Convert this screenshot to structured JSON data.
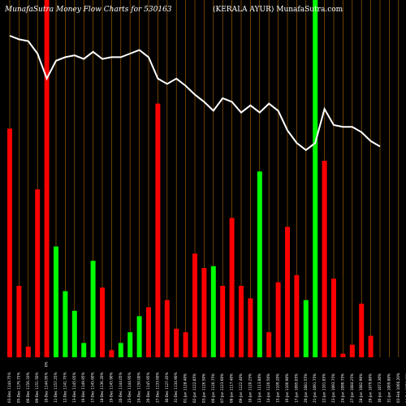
{
  "header": {
    "title_left": "MunafaSutra  Money Flow  Charts for 530163",
    "title_center": "(KERALA AYUR) MunafaSutra.com"
  },
  "chart_data": {
    "type": "bar",
    "title": "MunafaSutra  Money Flow  Charts for 530163",
    "subtitle": "(KERALA AYUR) MunafaSutra.com",
    "xlabel": "",
    "ylabel": "",
    "ylim": [
      0,
      100
    ],
    "grid": "vertical",
    "colors": {
      "up": "#00ff00",
      "down": "#ff0000",
      "line": "#ffffff",
      "grid": "#b86a00",
      "background": "#000000"
    },
    "categories": [
      "03-Dec 1144.75%",
      "05-Dec 1176.75%",
      "06-Dec 1156.10%",
      "09-Dec 1151.50%",
      "10-Dec 1144.95%",
      "11-Dec 1157.25%",
      "12-Dec 1141.75%",
      "13-Dec 1145.05%",
      "16-Dec 1149.95%",
      "17-Dec 1145.60%",
      "18-Dec 1136.20%",
      "19-Dec 1145.90%",
      "20-Dec 1144.05%",
      "23-Dec 1144.95%",
      "24-Dec 1150.00%",
      "26-Dec 1145.95%",
      "27-Dec 1133.60%",
      "30-Dec 1127.45%",
      "31-Dec 1134.90%",
      "01-Jan 1128.40%",
      "02-Jan 1122.85%",
      "03-Jan 1126.50%",
      "06-Jan 1120.75%",
      "07-Jan 1123.60%",
      "08-Jan 1117.40%",
      "09-Jan 1122.40%",
      "10-Jan 1120.25%",
      "13-Jan 1113.80%",
      "14-Jan 1120.50%",
      "15-Jan 1109.20%",
      "16-Jan 1100.90%",
      "17-Jan 1095.05%",
      "20-Jan 1081.55%",
      "21-Jan 1091.75%",
      "22-Jan 1101.85%",
      "23-Jan 1093.75%",
      "24-Jan 1090.75%",
      "27-Jan 1084.25%",
      "28-Jan 1082.90%",
      "29-Jan 1079.80%",
      "30-Jan 1073.30%",
      "31-Jan 1069.80%",
      "03-Feb 1060.20%",
      "04-Feb 1050.40%",
      "05-Feb 1047.10%",
      "06-Feb 1042.95%",
      "07-Feb 1039.75%",
      "10-Feb 1030.85%"
    ],
    "x_label_extra": "0%",
    "series": [
      {
        "values": [
          64,
          20,
          3,
          47,
          100,
          24,
          12,
          9,
          4,
          20,
          20,
          2,
          4,
          7,
          11,
          14,
          64,
          16,
          8,
          7,
          29,
          25,
          17,
          29,
          18,
          15,
          52,
          7,
          21,
          30,
          23,
          16,
          100,
          55,
          22,
          1,
          4,
          15,
          6,
          0,
          0,
          0,
          0,
          0,
          0,
          0,
          0,
          0
        ]
      },
      {
        "values": [
          100,
          99,
          98,
          95,
          90,
          89,
          88,
          88,
          89,
          87,
          86,
          85,
          84,
          82,
          80,
          78,
          76,
          74,
          73,
          72,
          71,
          71,
          70,
          70,
          69,
          68,
          67,
          66,
          65,
          64,
          62,
          60,
          60,
          64,
          60,
          60,
          59,
          58,
          58,
          57,
          0,
          0,
          0,
          0,
          0,
          0,
          0,
          0
        ]
      }
    ],
    "bars": [
      {
        "date": "03-Dec",
        "value": 64,
        "dir": "down"
      },
      {
        "date": "05-Dec",
        "value": 20,
        "dir": "down"
      },
      {
        "date": "06-Dec",
        "value": 3,
        "dir": "down"
      },
      {
        "date": "09-Dec",
        "value": 47,
        "dir": "down"
      },
      {
        "date": "10-Dec",
        "value": 100,
        "dir": "down"
      },
      {
        "date": "11-Dec",
        "value": 31,
        "dir": "up"
      },
      {
        "date": "12-Dec",
        "value": 18.5,
        "dir": "up"
      },
      {
        "date": "13-Dec",
        "value": 13,
        "dir": "up"
      },
      {
        "date": "16-Dec",
        "value": 4,
        "dir": "up"
      },
      {
        "date": "17-Dec",
        "value": 27,
        "dir": "up"
      },
      {
        "date": "18-Dec",
        "value": 19.5,
        "dir": "down"
      },
      {
        "date": "19-Dec",
        "value": 2,
        "dir": "down"
      },
      {
        "date": "20-Dec",
        "value": 4,
        "dir": "up"
      },
      {
        "date": "23-Dec",
        "value": 7,
        "dir": "up"
      },
      {
        "date": "24-Dec",
        "value": 11.5,
        "dir": "up"
      },
      {
        "date": "26-Dec",
        "value": 14,
        "dir": "down"
      },
      {
        "date": "27-Dec",
        "value": 71,
        "dir": "down"
      },
      {
        "date": "30-Dec",
        "value": 16,
        "dir": "down"
      },
      {
        "date": "31-Dec",
        "value": 8,
        "dir": "down"
      },
      {
        "date": "01-Jan",
        "value": 7,
        "dir": "down"
      },
      {
        "date": "02-Jan",
        "value": 29,
        "dir": "down"
      },
      {
        "date": "03-Jan",
        "value": 25,
        "dir": "down"
      },
      {
        "date": "06-Jan",
        "value": 25.5,
        "dir": "up"
      },
      {
        "date": "07-Jan",
        "value": 20,
        "dir": "down"
      },
      {
        "date": "08-Jan",
        "value": 39,
        "dir": "down"
      },
      {
        "date": "09-Jan",
        "value": 20,
        "dir": "down"
      },
      {
        "date": "10-Jan",
        "value": 16.5,
        "dir": "down"
      },
      {
        "date": "13-Jan",
        "value": 52,
        "dir": "up"
      },
      {
        "date": "14-Jan",
        "value": 7,
        "dir": "down"
      },
      {
        "date": "15-Jan",
        "value": 21,
        "dir": "down"
      },
      {
        "date": "16-Jan",
        "value": 36.5,
        "dir": "down"
      },
      {
        "date": "17-Jan",
        "value": 23,
        "dir": "down"
      },
      {
        "date": "20-Jan",
        "value": 16,
        "dir": "up"
      },
      {
        "date": "21-Jan",
        "value": 100,
        "dir": "up"
      },
      {
        "date": "22-Jan",
        "value": 55,
        "dir": "down"
      },
      {
        "date": "23-Jan",
        "value": 22,
        "dir": "down"
      },
      {
        "date": "24-Jan",
        "value": 1,
        "dir": "down"
      },
      {
        "date": "27-Jan",
        "value": 3.5,
        "dir": "down"
      },
      {
        "date": "28-Jan",
        "value": 15,
        "dir": "down"
      },
      {
        "date": "29-Jan",
        "value": 6,
        "dir": "down"
      }
    ],
    "flow_line": [
      {
        "date": "03-Dec",
        "value": 90
      },
      {
        "date": "05-Dec",
        "value": 89
      },
      {
        "date": "06-Dec",
        "value": 88.5
      },
      {
        "date": "09-Dec",
        "value": 85
      },
      {
        "date": "10-Dec",
        "value": 78
      },
      {
        "date": "11-Dec",
        "value": 83
      },
      {
        "date": "12-Dec",
        "value": 84
      },
      {
        "date": "13-Dec",
        "value": 84.5
      },
      {
        "date": "16-Dec",
        "value": 83.5
      },
      {
        "date": "17-Dec",
        "value": 85.5
      },
      {
        "date": "18-Dec",
        "value": 83.5
      },
      {
        "date": "19-Dec",
        "value": 84
      },
      {
        "date": "20-Dec",
        "value": 84
      },
      {
        "date": "23-Dec",
        "value": 85
      },
      {
        "date": "24-Dec",
        "value": 86
      },
      {
        "date": "26-Dec",
        "value": 84
      },
      {
        "date": "27-Dec",
        "value": 78
      },
      {
        "date": "30-Dec",
        "value": 76.5
      },
      {
        "date": "31-Dec",
        "value": 78
      },
      {
        "date": "01-Jan",
        "value": 76
      },
      {
        "date": "02-Jan",
        "value": 73.5
      },
      {
        "date": "03-Jan",
        "value": 71.5
      },
      {
        "date": "06-Jan",
        "value": 69
      },
      {
        "date": "07-Jan",
        "value": 72.5
      },
      {
        "date": "08-Jan",
        "value": 71.5
      },
      {
        "date": "09-Jan",
        "value": 68.5
      },
      {
        "date": "10-Jan",
        "value": 70.5
      },
      {
        "date": "13-Jan",
        "value": 68.5
      },
      {
        "date": "14-Jan",
        "value": 71
      },
      {
        "date": "15-Jan",
        "value": 69
      },
      {
        "date": "16-Jan",
        "value": 63.5
      },
      {
        "date": "17-Jan",
        "value": 60
      },
      {
        "date": "20-Jan",
        "value": 58
      },
      {
        "date": "21-Jan",
        "value": 60
      },
      {
        "date": "22-Jan",
        "value": 69.5
      },
      {
        "date": "23-Jan",
        "value": 65
      },
      {
        "date": "24-Jan",
        "value": 64.5
      },
      {
        "date": "27-Jan",
        "value": 64.5
      },
      {
        "date": "28-Jan",
        "value": 63
      },
      {
        "date": "29-Jan",
        "value": 60.5
      },
      {
        "date": "30-Jan",
        "value": 59
      }
    ]
  }
}
